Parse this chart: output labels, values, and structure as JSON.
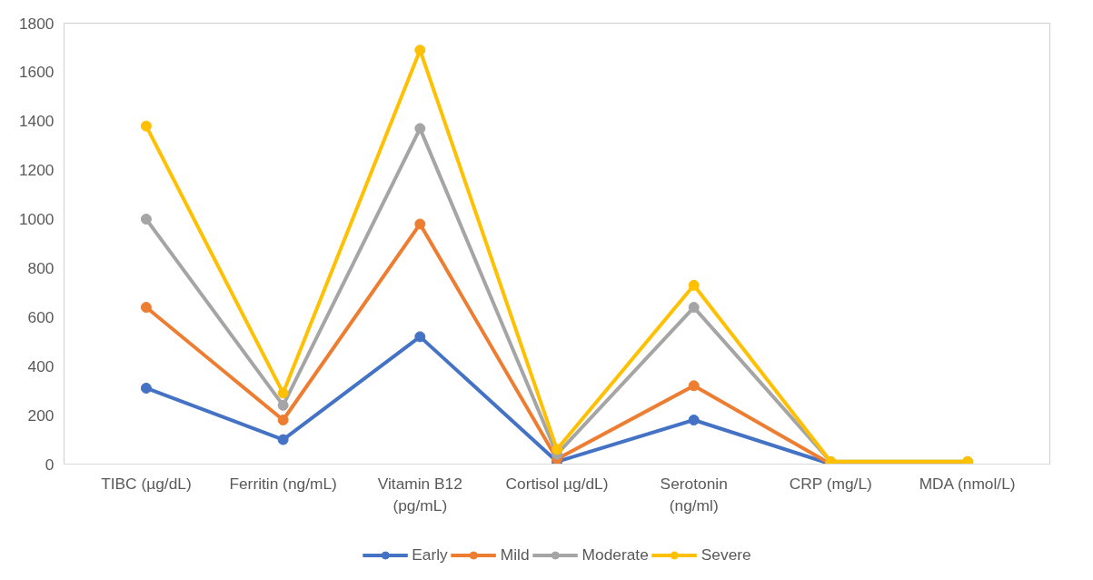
{
  "chart_data": {
    "type": "line",
    "categories": [
      "TIBC (µg/dL)",
      "Ferritin (ng/mL)",
      "Vitamin B12\n(pg/mL)",
      "Cortisol µg/dL)",
      "Serotonin\n(ng/ml)",
      "CRP (mg/L)",
      "MDA (nmol/L)"
    ],
    "series": [
      {
        "name": "Early",
        "color": "#4472c4",
        "values": [
          310,
          100,
          520,
          10,
          180,
          0,
          0
        ]
      },
      {
        "name": "Mild",
        "color": "#ed7d31",
        "values": [
          640,
          180,
          980,
          20,
          320,
          0,
          0
        ]
      },
      {
        "name": "Moderate",
        "color": "#a5a5a5",
        "values": [
          1000,
          240,
          1370,
          40,
          640,
          10,
          10
        ]
      },
      {
        "name": "Severe",
        "color": "#ffc000",
        "values": [
          1380,
          290,
          1690,
          60,
          730,
          10,
          10
        ]
      }
    ],
    "ylim": [
      0,
      1800
    ],
    "yticks": [
      0,
      200,
      400,
      600,
      800,
      1000,
      1200,
      1400,
      1600,
      1800
    ],
    "grid": false,
    "legend": "bottom",
    "marker": "circle",
    "line_style": "solid"
  }
}
